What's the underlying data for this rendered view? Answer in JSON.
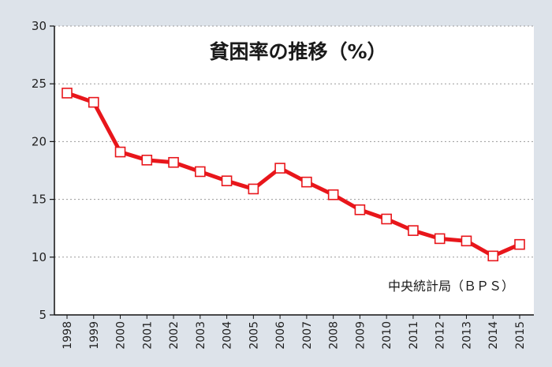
{
  "colors": {
    "page_background": "#dde3ea",
    "plot_background": "#ffffff",
    "series_line": "#e8161b",
    "marker_fill": "#ffffff",
    "gridline": "#9a9a9a",
    "axis": "#111111"
  },
  "chart_data": {
    "type": "line",
    "title": "貧困率の推移（%）",
    "source_note": "中央統計局（ＢＰＳ）",
    "xlabel": "",
    "ylabel": "",
    "ylim": [
      5,
      30
    ],
    "yticks": [
      5,
      10,
      15,
      20,
      25,
      30
    ],
    "grid": true,
    "categories": [
      "1998",
      "1999",
      "2000",
      "2001",
      "2002",
      "2003",
      "2004",
      "2005",
      "2006",
      "2007",
      "2008",
      "2009",
      "2010",
      "2011",
      "2012",
      "2013",
      "2014",
      "2015"
    ],
    "series": [
      {
        "name": "貧困率",
        "values": [
          24.2,
          23.4,
          19.1,
          18.4,
          18.2,
          17.4,
          16.6,
          15.9,
          17.7,
          16.5,
          15.4,
          14.1,
          13.3,
          12.3,
          11.6,
          11.4,
          10.1,
          11.1
        ]
      }
    ]
  }
}
